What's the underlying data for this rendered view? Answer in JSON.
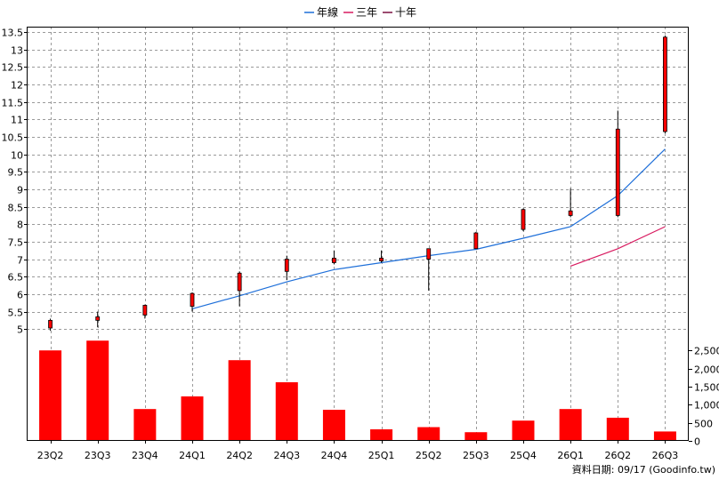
{
  "chart_data": {
    "type": "candlestick+bar",
    "legend": [
      {
        "name": "年線",
        "color": "#1e6fd9"
      },
      {
        "name": "三年",
        "color": "#d81b60"
      },
      {
        "name": "十年",
        "color": "#7a1040"
      }
    ],
    "categories": [
      "23Q2",
      "23Q3",
      "23Q4",
      "24Q1",
      "24Q2",
      "24Q3",
      "24Q4",
      "25Q1",
      "25Q2",
      "25Q3",
      "25Q4",
      "26Q1",
      "26Q2",
      "26Q3"
    ],
    "price_axis": {
      "ylim": [
        4.7,
        13.6
      ],
      "ticks": [
        5,
        5.5,
        6,
        6.5,
        7,
        7.5,
        8,
        8.5,
        9,
        9.5,
        10,
        10.5,
        11,
        11.5,
        12,
        12.5,
        13,
        13.5
      ]
    },
    "volume_axis": {
      "ylim": [
        0,
        2800
      ],
      "ticks": [
        0,
        500,
        1000,
        1500,
        2000,
        2500
      ],
      "tick_labels": [
        "0",
        "500",
        "1,000",
        "1,500",
        "2,000",
        "2,500"
      ]
    },
    "candles": [
      {
        "open": 5.03,
        "close": 5.25,
        "high": 5.3,
        "low": 4.95
      },
      {
        "open": 5.25,
        "close": 5.35,
        "high": 5.5,
        "low": 5.05
      },
      {
        "open": 5.4,
        "close": 5.68,
        "high": 5.7,
        "low": 5.3
      },
      {
        "open": 5.65,
        "close": 6.02,
        "high": 6.05,
        "low": 5.5
      },
      {
        "open": 6.1,
        "close": 6.6,
        "high": 6.65,
        "low": 5.65
      },
      {
        "open": 6.65,
        "close": 7.0,
        "high": 7.1,
        "low": 6.4
      },
      {
        "open": 6.9,
        "close": 7.03,
        "high": 7.25,
        "low": 6.85
      },
      {
        "open": 6.95,
        "close": 7.03,
        "high": 7.25,
        "low": 6.9
      },
      {
        "open": 7.0,
        "close": 7.3,
        "high": 7.3,
        "low": 6.1
      },
      {
        "open": 7.3,
        "close": 7.75,
        "high": 7.78,
        "low": 7.3
      },
      {
        "open": 7.85,
        "close": 8.42,
        "high": 8.45,
        "low": 7.8
      },
      {
        "open": 8.25,
        "close": 8.38,
        "high": 9.02,
        "low": 8.2
      },
      {
        "open": 8.25,
        "close": 10.72,
        "high": 11.25,
        "low": 8.2
      },
      {
        "open": 10.65,
        "close": 13.35,
        "high": 13.4,
        "low": 10.6
      }
    ],
    "series": [
      {
        "name": "年線",
        "color": "#1e6fd9",
        "values": [
          null,
          null,
          null,
          5.58,
          5.95,
          6.35,
          6.7,
          6.9,
          7.1,
          7.28,
          7.6,
          7.93,
          8.82,
          10.15
        ]
      },
      {
        "name": "三年",
        "color": "#d81b60",
        "values": [
          null,
          null,
          null,
          null,
          null,
          null,
          null,
          null,
          null,
          null,
          null,
          6.8,
          7.3,
          7.93
        ]
      },
      {
        "name": "十年",
        "color": "#7a1040",
        "values": [
          null,
          null,
          null,
          null,
          null,
          null,
          null,
          null,
          null,
          null,
          null,
          null,
          null,
          null
        ]
      }
    ],
    "volume": [
      2500,
      2770,
      880,
      1230,
      2230,
      1620,
      860,
      320,
      380,
      240,
      560,
      880,
      640,
      260
    ],
    "grid": true
  },
  "footer": {
    "source": "資料日期: 09/17  (Goodinfo.tw)"
  }
}
